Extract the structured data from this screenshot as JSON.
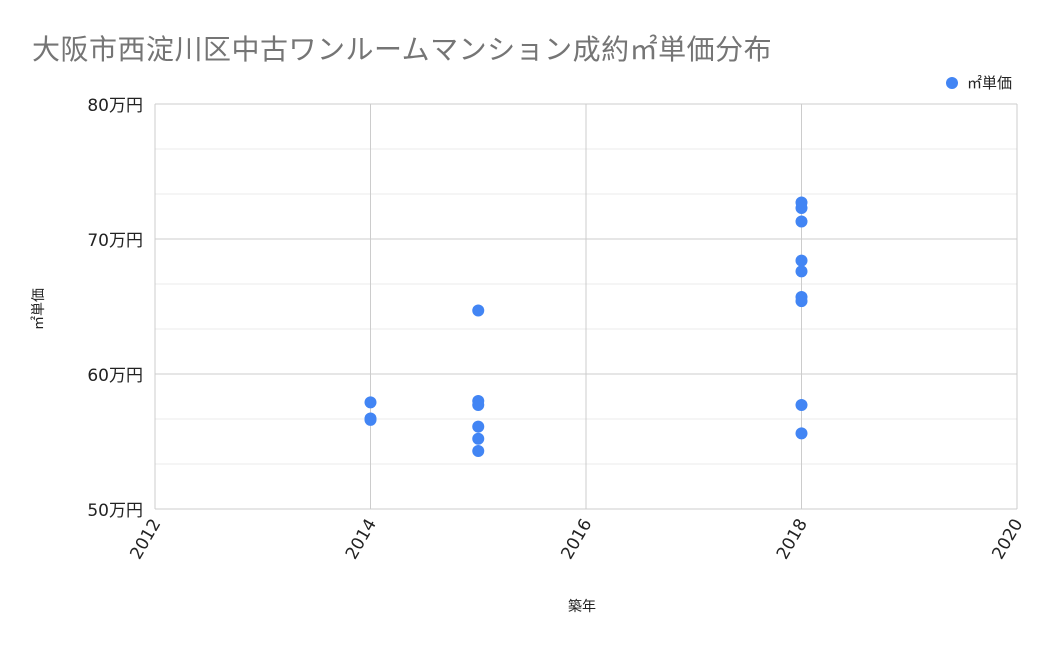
{
  "chart_data": {
    "type": "scatter",
    "title": "大阪市西淀川区中古ワンルームマンション成約㎡単価分布",
    "xlabel": "築年",
    "ylabel": "㎡単価",
    "xlim": [
      2012,
      2020
    ],
    "ylim": [
      50,
      80
    ],
    "x_ticks": [
      "2012",
      "2014",
      "2016",
      "2018",
      "2020"
    ],
    "y_ticks": [
      "50万円",
      "60万円",
      "70万円",
      "80万円"
    ],
    "grid": true,
    "legend_position": "top-right",
    "series": [
      {
        "name": "㎡単価",
        "color": "#4285f4",
        "points": [
          {
            "x": 2014,
            "y": 57.9
          },
          {
            "x": 2014,
            "y": 56.7
          },
          {
            "x": 2014,
            "y": 56.6
          },
          {
            "x": 2015,
            "y": 64.7
          },
          {
            "x": 2015,
            "y": 58.0
          },
          {
            "x": 2015,
            "y": 57.7
          },
          {
            "x": 2015,
            "y": 56.1
          },
          {
            "x": 2015,
            "y": 55.2
          },
          {
            "x": 2015,
            "y": 54.3
          },
          {
            "x": 2018,
            "y": 72.7
          },
          {
            "x": 2018,
            "y": 72.3
          },
          {
            "x": 2018,
            "y": 71.3
          },
          {
            "x": 2018,
            "y": 68.4
          },
          {
            "x": 2018,
            "y": 67.6
          },
          {
            "x": 2018,
            "y": 65.7
          },
          {
            "x": 2018,
            "y": 65.4
          },
          {
            "x": 2018,
            "y": 57.7
          },
          {
            "x": 2018,
            "y": 55.6
          }
        ]
      }
    ]
  },
  "legend": {
    "label": "㎡単価"
  }
}
